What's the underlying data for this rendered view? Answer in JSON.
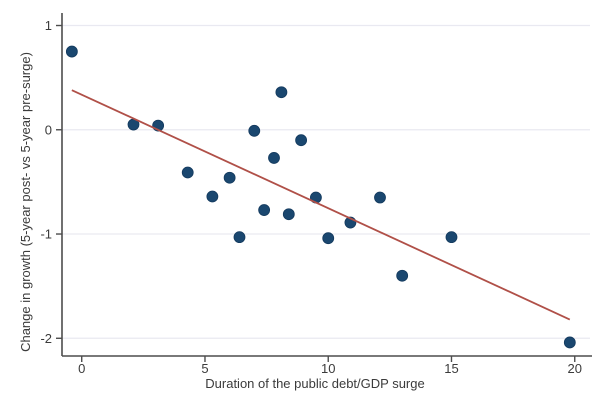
{
  "figure": {
    "background": "#ffffff"
  },
  "chart_data": {
    "type": "scatter",
    "title": "",
    "xlabel": "Duration of the public debt/GDP surge",
    "ylabel": "Change in growth (5-year post- vs 5-year pre-surge)",
    "xlim": [
      -0.8,
      20.7
    ],
    "ylim": [
      -2.17,
      1.12
    ],
    "x_ticks": [
      0,
      5,
      10,
      15,
      20
    ],
    "y_ticks": [
      1,
      0,
      -1,
      -2
    ],
    "grid": "horizontal-only",
    "legend": "none",
    "points": [
      {
        "x": -0.4,
        "y": 0.75
      },
      {
        "x": 2.1,
        "y": 0.05
      },
      {
        "x": 3.1,
        "y": 0.04
      },
      {
        "x": 4.3,
        "y": -0.41
      },
      {
        "x": 5.3,
        "y": -0.64
      },
      {
        "x": 6.0,
        "y": -0.46
      },
      {
        "x": 6.4,
        "y": -1.03
      },
      {
        "x": 7.0,
        "y": -0.01
      },
      {
        "x": 7.4,
        "y": -0.77
      },
      {
        "x": 7.8,
        "y": -0.27
      },
      {
        "x": 8.1,
        "y": 0.36
      },
      {
        "x": 8.4,
        "y": -0.81
      },
      {
        "x": 8.9,
        "y": -0.1
      },
      {
        "x": 9.5,
        "y": -0.65
      },
      {
        "x": 10.0,
        "y": -1.04
      },
      {
        "x": 10.9,
        "y": -0.89
      },
      {
        "x": 12.1,
        "y": -0.65
      },
      {
        "x": 13.0,
        "y": -1.4
      },
      {
        "x": 15.0,
        "y": -1.03
      },
      {
        "x": 19.8,
        "y": -2.04
      }
    ],
    "trend_line": {
      "x1": -0.4,
      "y1": 0.38,
      "x2": 19.8,
      "y2": -1.82
    },
    "marker_radius_px": 5.5,
    "colors": {
      "marker": "#1a476f",
      "marker_edge": "#143a5e",
      "trend": "#b05048",
      "grid": "#e9e9f1",
      "axis": "#4d4d4d",
      "text": "#3b3b3b",
      "background": "#ffffff"
    }
  }
}
